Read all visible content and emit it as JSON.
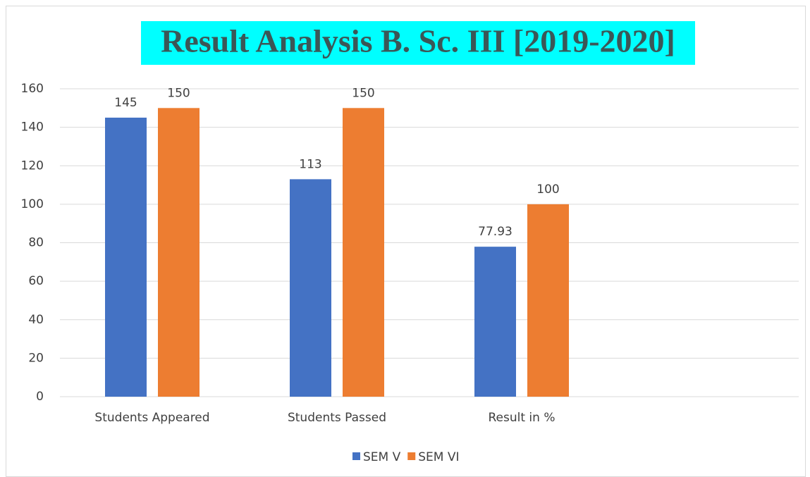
{
  "chart_data": {
    "type": "bar",
    "title": "Result Analysis B. Sc. III [2019-2020]",
    "categories": [
      "Students Appeared",
      "Students Passed",
      "Result in %",
      null
    ],
    "series": [
      {
        "name": "SEM V",
        "color": "#4472c4",
        "values": [
          145,
          113,
          77.93,
          null
        ]
      },
      {
        "name": "SEM VI",
        "color": "#ed7d31",
        "values": [
          150,
          150,
          100,
          null
        ]
      }
    ],
    "ylim": [
      0,
      160
    ],
    "yticks": [
      0,
      20,
      40,
      60,
      80,
      100,
      120,
      140,
      160
    ],
    "grid": true,
    "legend": "bottom"
  }
}
